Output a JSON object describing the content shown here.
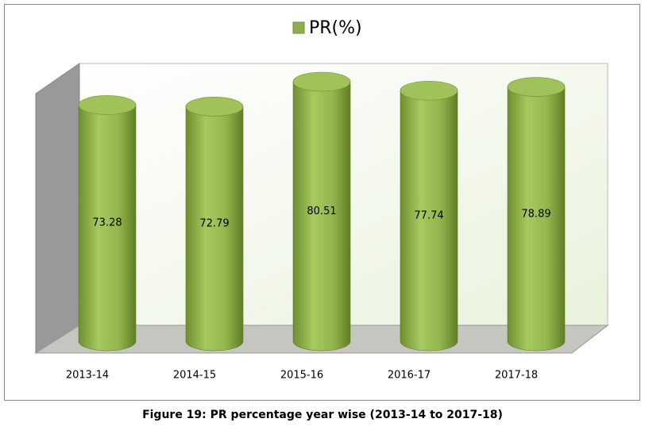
{
  "chart_data": {
    "type": "bar",
    "categories": [
      "2013-14",
      "2014-15",
      "2015-16",
      "2016-17",
      "2017-18"
    ],
    "series": [
      {
        "name": "PR(%)",
        "color": "#8db04a",
        "values": [
          73.28,
          72.79,
          80.51,
          77.74,
          78.89
        ]
      }
    ],
    "caption": "Figure 19: PR percentage year wise (2013-14 to 2017-18)"
  }
}
